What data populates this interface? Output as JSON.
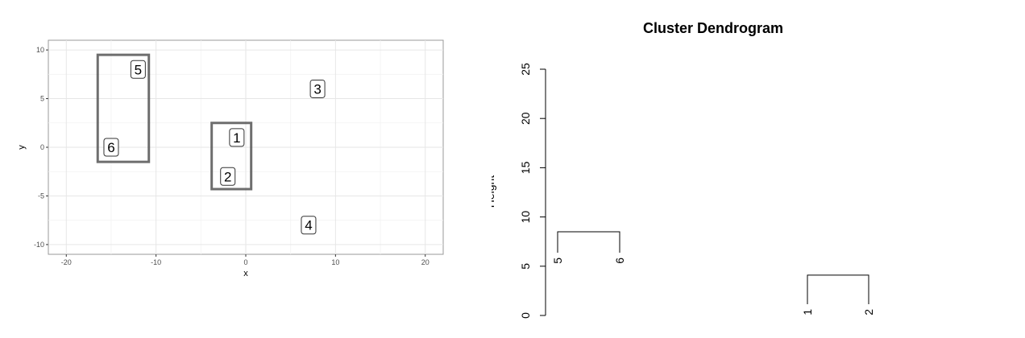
{
  "chart_data": [
    {
      "type": "scatter",
      "title": "",
      "xlabel": "x",
      "ylabel": "y",
      "xlim": [
        -22,
        22
      ],
      "ylim": [
        -11,
        11
      ],
      "x_ticks": [
        -20,
        -10,
        0,
        10,
        20
      ],
      "y_ticks": [
        -10,
        -5,
        0,
        5,
        10
      ],
      "x_tick_labels": [
        "-20",
        "-10",
        "0",
        "10",
        "20"
      ],
      "y_tick_labels": [
        "-10",
        "-5",
        "0",
        "5",
        "10"
      ],
      "grid": true,
      "points": [
        {
          "label": "1",
          "x": -1,
          "y": 1
        },
        {
          "label": "2",
          "x": -2,
          "y": -3
        },
        {
          "label": "3",
          "x": 8,
          "y": 6
        },
        {
          "label": "4",
          "x": 7,
          "y": -8
        },
        {
          "label": "5",
          "x": -12,
          "y": 8
        },
        {
          "label": "6",
          "x": -15,
          "y": 0
        }
      ],
      "clusters": [
        {
          "members": [
            "5",
            "6"
          ],
          "x_range": [
            -16.5,
            -10.8
          ],
          "y_range": [
            -1.5,
            9.5
          ]
        },
        {
          "members": [
            "1",
            "2"
          ],
          "x_range": [
            -3.8,
            0.6
          ],
          "y_range": [
            -4.3,
            2.5
          ]
        }
      ]
    },
    {
      "type": "dendrogram",
      "title": "Cluster Dendrogram",
      "xlabel": "",
      "ylabel": "Height",
      "ylim": [
        0,
        25
      ],
      "y_ticks": [
        0,
        5,
        10,
        15,
        20,
        25
      ],
      "y_tick_labels": [
        "0",
        "5",
        "10",
        "15",
        "20",
        "25"
      ],
      "leaves": [
        "5",
        "6",
        "1",
        "2"
      ],
      "merges": [
        {
          "left": "5",
          "right": "6",
          "height": 8.5
        },
        {
          "left": "1",
          "right": "2",
          "height": 4.1
        }
      ]
    }
  ]
}
